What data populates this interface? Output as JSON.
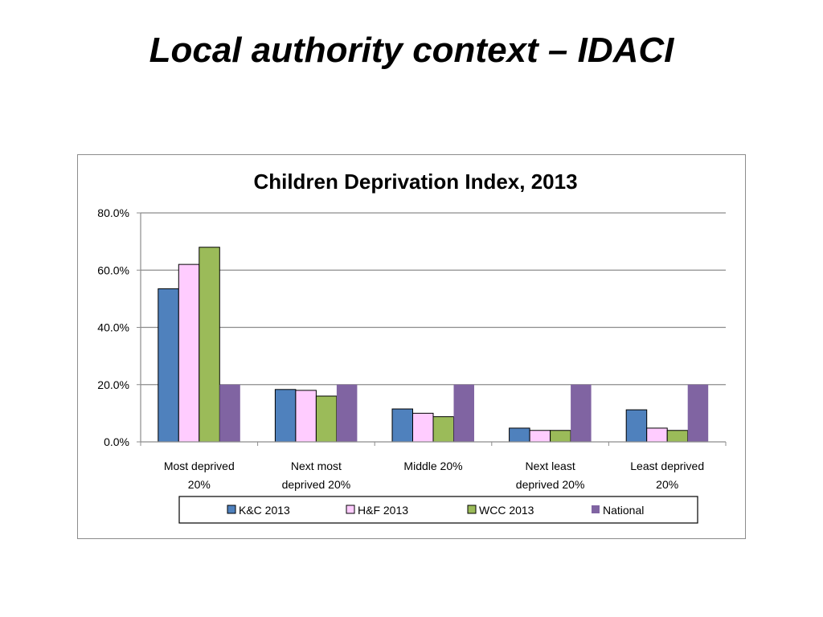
{
  "slide": {
    "title": "Local authority context – IDACI"
  },
  "chart_data": {
    "type": "bar",
    "title": "Children Deprivation Index, 2013",
    "xlabel": "",
    "ylabel": "",
    "ylim": [
      0,
      80
    ],
    "yticks": [
      "0.0%",
      "20.0%",
      "40.0%",
      "60.0%",
      "80.0%"
    ],
    "categories": [
      [
        "Most deprived",
        "20%"
      ],
      [
        "Next most",
        "deprived 20%"
      ],
      [
        "Middle 20%"
      ],
      [
        "Next least",
        "deprived 20%"
      ],
      [
        "Least deprived",
        "20%"
      ]
    ],
    "series": [
      {
        "name": "K&C 2013",
        "color": "#4f81bd",
        "values": [
          53.5,
          18.3,
          11.5,
          4.8,
          11.2
        ]
      },
      {
        "name": "H&F 2013",
        "color": "#ffccff",
        "values": [
          62.0,
          18.0,
          10.0,
          4.0,
          4.8
        ]
      },
      {
        "name": "WCC 2013",
        "color": "#9bbb59",
        "values": [
          68.0,
          16.0,
          8.8,
          4.0,
          4.0
        ]
      },
      {
        "name": "National",
        "color": "#8064a2",
        "values": [
          20.0,
          20.0,
          20.0,
          20.0,
          20.0
        ]
      }
    ],
    "grid": true,
    "legend_position": "bottom"
  }
}
